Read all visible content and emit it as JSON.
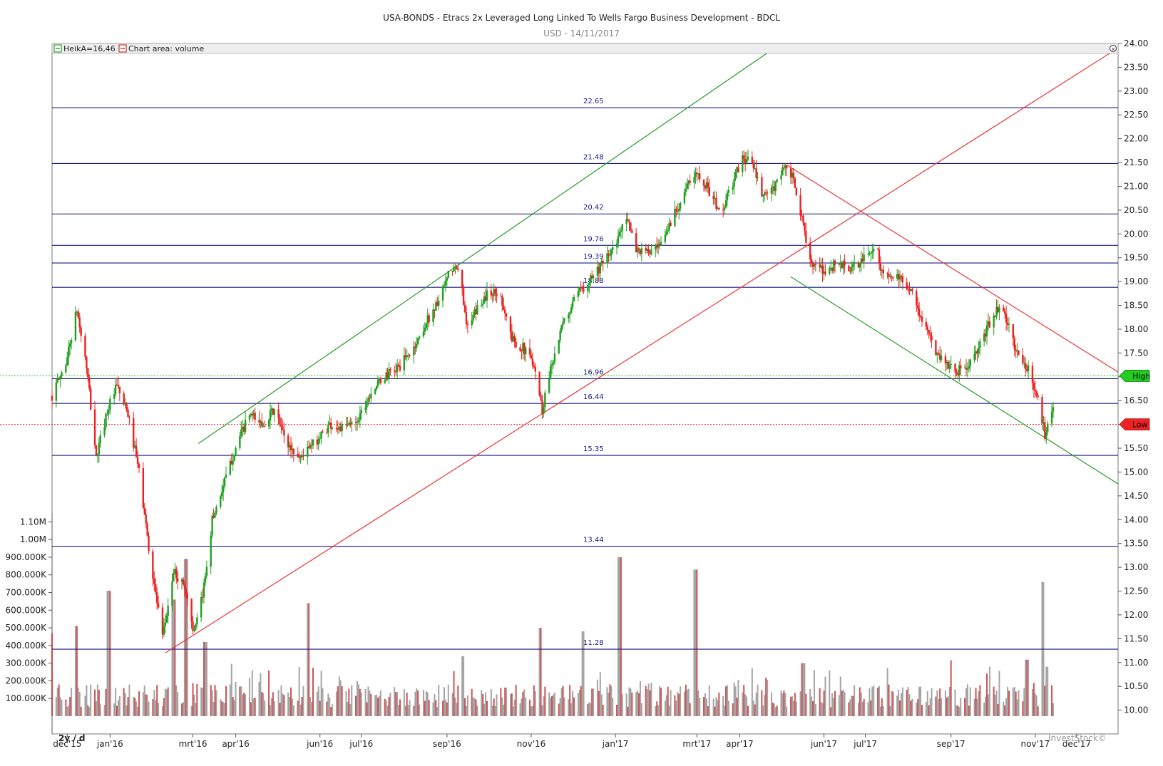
{
  "chart_data": {
    "type": "candlestick",
    "title": "USA-BONDS - Etracs 2x Leveraged Long Linked To Wells Fargo Business Development - BDCL",
    "subtitle": "USD - 14/11/2017",
    "legend": [
      {
        "label": "HeikA=16,46",
        "color": "#3aa53a"
      },
      {
        "label": "Chart area: volume",
        "color": "#d04040"
      }
    ],
    "period_label": "2y / d",
    "watermark": "InvestStock©",
    "price_axis": {
      "min": 9.5,
      "max": 24.0,
      "ticks": [
        "24.00",
        "23.50",
        "23.00",
        "22.50",
        "22.00",
        "21.50",
        "21.00",
        "20.50",
        "20.00",
        "19.50",
        "19.00",
        "18.50",
        "18.00",
        "17.50",
        "17.00",
        "16.50",
        "16.00",
        "15.50",
        "15.00",
        "14.50",
        "14.00",
        "13.50",
        "13.00",
        "12.50",
        "12.00",
        "11.50",
        "11.00",
        "10.50",
        "10.00"
      ]
    },
    "volume_axis": {
      "min": 0,
      "max": 1150000,
      "ticks": [
        "1.10M",
        "1.00M",
        "900.000K",
        "800.000K",
        "700.000K",
        "600.000K",
        "500.000K",
        "400.000K",
        "300.000K",
        "200.000K",
        "100.000K"
      ]
    },
    "x_axis": {
      "start": "2015-11-20",
      "end": "2017-12-31",
      "ticks": [
        {
          "label": "dec'15",
          "date": "2015-12-01"
        },
        {
          "label": "jan'16",
          "date": "2016-01-01"
        },
        {
          "label": "mrt'16",
          "date": "2016-03-01"
        },
        {
          "label": "apr'16",
          "date": "2016-04-01"
        },
        {
          "label": "jun'16",
          "date": "2016-06-01"
        },
        {
          "label": "jul'16",
          "date": "2016-07-01"
        },
        {
          "label": "sep'16",
          "date": "2016-09-01"
        },
        {
          "label": "nov'16",
          "date": "2016-11-01"
        },
        {
          "label": "jan'17",
          "date": "2017-01-01"
        },
        {
          "label": "mrt'17",
          "date": "2017-03-01"
        },
        {
          "label": "apr'17",
          "date": "2017-04-01"
        },
        {
          "label": "jun'17",
          "date": "2017-06-01"
        },
        {
          "label": "jul'17",
          "date": "2017-07-01"
        },
        {
          "label": "sep'17",
          "date": "2017-09-01"
        },
        {
          "label": "nov'17",
          "date": "2017-11-01"
        },
        {
          "label": "dec'17",
          "date": "2017-12-01"
        }
      ]
    },
    "levels": [
      {
        "value": 22.65,
        "label": "22.65"
      },
      {
        "value": 21.48,
        "label": "21.48"
      },
      {
        "value": 20.42,
        "label": "20.42"
      },
      {
        "value": 19.76,
        "label": "19.76"
      },
      {
        "value": 19.39,
        "label": "19.39"
      },
      {
        "value": 18.88,
        "label": "18.88"
      },
      {
        "value": 16.96,
        "label": "16.96"
      },
      {
        "value": 16.44,
        "label": "16.44"
      },
      {
        "value": 15.35,
        "label": "15.35"
      },
      {
        "value": 13.44,
        "label": "13.44"
      },
      {
        "value": 11.28,
        "label": "11.28"
      }
    ],
    "high_line": {
      "value": 17.02,
      "label": "High",
      "color": "#22cc22"
    },
    "low_line": {
      "value": 16.0,
      "label": "Low",
      "color": "#ee2222"
    },
    "trendlines": [
      {
        "color": "#2a9a2a",
        "from": {
          "date": "2016-03-05",
          "value": 15.6
        },
        "to": {
          "date": "2017-05-01",
          "value": 24.0
        }
      },
      {
        "color": "#2a9a2a",
        "from": {
          "date": "2017-05-08",
          "value": 19.1
        },
        "to": {
          "date": "2017-12-31",
          "value": 14.75
        }
      },
      {
        "color": "#ee3333",
        "from": {
          "date": "2016-02-10",
          "value": 11.2
        },
        "to": {
          "date": "2017-12-28",
          "value": 23.85
        }
      },
      {
        "color": "#ee3333",
        "from": {
          "date": "2017-05-05",
          "value": 21.45
        },
        "to": {
          "date": "2017-12-31",
          "value": 17.1
        }
      }
    ],
    "price_path": [
      {
        "date": "2015-11-20",
        "value": 16.6
      },
      {
        "date": "2015-11-30",
        "value": 17.3
      },
      {
        "date": "2015-12-08",
        "value": 18.4
      },
      {
        "date": "2015-12-15",
        "value": 17.2
      },
      {
        "date": "2015-12-22",
        "value": 15.3
      },
      {
        "date": "2015-12-30",
        "value": 16.3
      },
      {
        "date": "2016-01-06",
        "value": 16.8
      },
      {
        "date": "2016-01-14",
        "value": 16.2
      },
      {
        "date": "2016-01-22",
        "value": 15.0
      },
      {
        "date": "2016-01-30",
        "value": 13.2
      },
      {
        "date": "2016-02-08",
        "value": 11.5
      },
      {
        "date": "2016-02-16",
        "value": 12.9
      },
      {
        "date": "2016-02-24",
        "value": 12.6
      },
      {
        "date": "2016-03-02",
        "value": 11.6
      },
      {
        "date": "2016-03-08",
        "value": 12.4
      },
      {
        "date": "2016-03-15",
        "value": 14.0
      },
      {
        "date": "2016-03-24",
        "value": 14.8
      },
      {
        "date": "2016-04-02",
        "value": 15.6
      },
      {
        "date": "2016-04-11",
        "value": 16.2
      },
      {
        "date": "2016-04-20",
        "value": 16.0
      },
      {
        "date": "2016-04-29",
        "value": 16.3
      },
      {
        "date": "2016-05-08",
        "value": 15.6
      },
      {
        "date": "2016-05-17",
        "value": 15.3
      },
      {
        "date": "2016-05-28",
        "value": 15.6
      },
      {
        "date": "2016-06-08",
        "value": 16.0
      },
      {
        "date": "2016-06-18",
        "value": 15.9
      },
      {
        "date": "2016-06-28",
        "value": 16.1
      },
      {
        "date": "2016-07-08",
        "value": 16.7
      },
      {
        "date": "2016-07-18",
        "value": 17.0
      },
      {
        "date": "2016-07-28",
        "value": 17.2
      },
      {
        "date": "2016-08-08",
        "value": 17.6
      },
      {
        "date": "2016-08-18",
        "value": 18.2
      },
      {
        "date": "2016-08-28",
        "value": 18.7
      },
      {
        "date": "2016-09-04",
        "value": 19.3
      },
      {
        "date": "2016-09-10",
        "value": 19.2
      },
      {
        "date": "2016-09-16",
        "value": 18.0
      },
      {
        "date": "2016-09-24",
        "value": 18.5
      },
      {
        "date": "2016-10-02",
        "value": 18.8
      },
      {
        "date": "2016-10-10",
        "value": 18.7
      },
      {
        "date": "2016-10-18",
        "value": 17.8
      },
      {
        "date": "2016-10-26",
        "value": 17.6
      },
      {
        "date": "2016-11-03",
        "value": 17.3
      },
      {
        "date": "2016-11-09",
        "value": 16.3
      },
      {
        "date": "2016-11-15",
        "value": 17.2
      },
      {
        "date": "2016-11-24",
        "value": 18.1
      },
      {
        "date": "2016-12-04",
        "value": 18.7
      },
      {
        "date": "2016-12-14",
        "value": 19.1
      },
      {
        "date": "2016-12-24",
        "value": 19.4
      },
      {
        "date": "2017-01-02",
        "value": 19.8
      },
      {
        "date": "2017-01-08",
        "value": 20.5
      },
      {
        "date": "2017-01-15",
        "value": 19.7
      },
      {
        "date": "2017-01-24",
        "value": 19.6
      },
      {
        "date": "2017-02-02",
        "value": 19.7
      },
      {
        "date": "2017-02-12",
        "value": 20.4
      },
      {
        "date": "2017-02-22",
        "value": 21.0
      },
      {
        "date": "2017-03-02",
        "value": 21.3
      },
      {
        "date": "2017-03-10",
        "value": 20.9
      },
      {
        "date": "2017-03-18",
        "value": 20.4
      },
      {
        "date": "2017-03-26",
        "value": 21.0
      },
      {
        "date": "2017-04-03",
        "value": 21.6
      },
      {
        "date": "2017-04-10",
        "value": 21.5
      },
      {
        "date": "2017-04-17",
        "value": 20.8
      },
      {
        "date": "2017-04-25",
        "value": 20.9
      },
      {
        "date": "2017-05-02",
        "value": 21.4
      },
      {
        "date": "2017-05-09",
        "value": 21.2
      },
      {
        "date": "2017-05-16",
        "value": 20.3
      },
      {
        "date": "2017-05-24",
        "value": 19.3
      },
      {
        "date": "2017-06-01",
        "value": 19.2
      },
      {
        "date": "2017-06-11",
        "value": 19.4
      },
      {
        "date": "2017-06-21",
        "value": 19.25
      },
      {
        "date": "2017-07-01",
        "value": 19.5
      },
      {
        "date": "2017-07-08",
        "value": 19.8
      },
      {
        "date": "2017-07-14",
        "value": 19.1
      },
      {
        "date": "2017-07-22",
        "value": 19.1
      },
      {
        "date": "2017-08-02",
        "value": 18.9
      },
      {
        "date": "2017-08-12",
        "value": 18.1
      },
      {
        "date": "2017-08-22",
        "value": 17.5
      },
      {
        "date": "2017-09-01",
        "value": 17.2
      },
      {
        "date": "2017-09-10",
        "value": 17.1
      },
      {
        "date": "2017-09-20",
        "value": 17.5
      },
      {
        "date": "2017-09-30",
        "value": 18.2
      },
      {
        "date": "2017-10-06",
        "value": 18.5
      },
      {
        "date": "2017-10-12",
        "value": 18.1
      },
      {
        "date": "2017-10-20",
        "value": 17.4
      },
      {
        "date": "2017-10-28",
        "value": 17.1
      },
      {
        "date": "2017-11-04",
        "value": 16.4
      },
      {
        "date": "2017-11-08",
        "value": 15.8
      },
      {
        "date": "2017-11-14",
        "value": 16.46
      }
    ],
    "volume_peaks": [
      {
        "date": "2015-11-21",
        "value": 470000
      },
      {
        "date": "2015-12-07",
        "value": 510000
      },
      {
        "date": "2015-12-31",
        "value": 710000
      },
      {
        "date": "2016-02-16",
        "value": 660000
      },
      {
        "date": "2016-02-25",
        "value": 890000
      },
      {
        "date": "2016-03-10",
        "value": 420000
      },
      {
        "date": "2016-05-23",
        "value": 640000
      },
      {
        "date": "2016-09-12",
        "value": 340000
      },
      {
        "date": "2016-11-07",
        "value": 500000
      },
      {
        "date": "2016-12-09",
        "value": 480000
      },
      {
        "date": "2017-01-04",
        "value": 900000
      },
      {
        "date": "2017-02-28",
        "value": 830000
      },
      {
        "date": "2017-05-17",
        "value": 300000
      },
      {
        "date": "2017-10-26",
        "value": 320000
      },
      {
        "date": "2017-11-06",
        "value": 760000
      },
      {
        "date": "2017-11-10",
        "value": 280000
      }
    ]
  }
}
